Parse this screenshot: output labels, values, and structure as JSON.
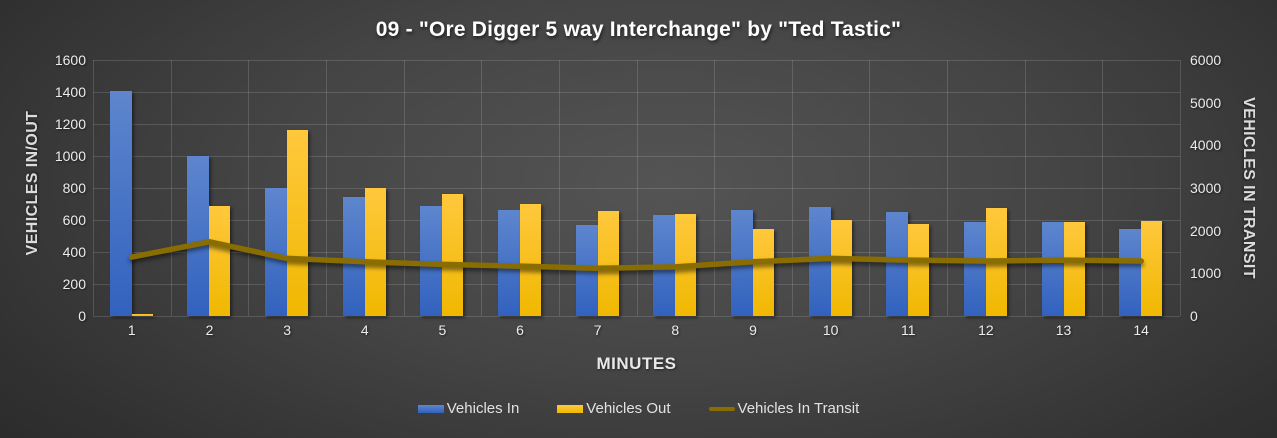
{
  "chart_data": {
    "type": "bar",
    "title": "09 - \"Ore Digger 5 way Interchange\" by \"Ted Tastic\"",
    "xlabel": "MINUTES",
    "ylabel_left": "VEHICLES IN/OUT",
    "ylabel_right": "VEHICLES IN TRANSIT",
    "categories": [
      "1",
      "2",
      "3",
      "4",
      "5",
      "6",
      "7",
      "8",
      "9",
      "10",
      "11",
      "12",
      "13",
      "14"
    ],
    "axis_left": {
      "min": 0,
      "max": 1600,
      "step": 200
    },
    "axis_right": {
      "min": 0,
      "max": 6000,
      "step": 1000
    },
    "grid": true,
    "legend_position": "bottom",
    "series": [
      {
        "name": "Vehicles In",
        "kind": "bar",
        "axis": "left",
        "color": "#4472c4",
        "values": [
          1405,
          1000,
          800,
          745,
          690,
          660,
          570,
          630,
          660,
          680,
          650,
          590,
          590,
          545
        ]
      },
      {
        "name": "Vehicles Out",
        "kind": "bar",
        "axis": "left",
        "color": "#ffc000",
        "values": [
          10,
          685,
          1160,
          800,
          760,
          700,
          655,
          640,
          545,
          600,
          575,
          675,
          585,
          595
        ]
      },
      {
        "name": "Vehicles In Transit",
        "kind": "line",
        "axis": "right",
        "color": "#8a6d00",
        "values": [
          1380,
          1740,
          1350,
          1270,
          1210,
          1170,
          1120,
          1150,
          1270,
          1350,
          1310,
          1290,
          1310,
          1290
        ]
      }
    ]
  }
}
